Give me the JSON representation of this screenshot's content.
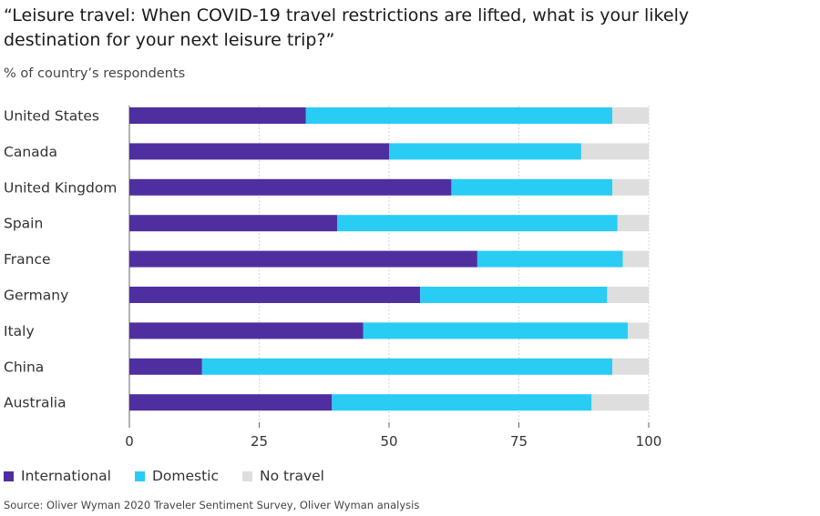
{
  "title": "“Leisure travel: When COVID-19 travel restrictions are lifted, what is your likely destination for your next leisure trip?”",
  "subtitle": "% of country’s respondents",
  "source": "Source: Oliver Wyman 2020 Traveler Sentiment Survey, Oliver Wyman analysis",
  "chart_data": {
    "type": "bar",
    "orientation": "horizontal",
    "stacked": true,
    "categories": [
      "United States",
      "Canada",
      "United Kingdom",
      "Spain",
      "France",
      "Germany",
      "Italy",
      "China",
      "Australia"
    ],
    "series": [
      {
        "name": "International",
        "color": "#4f2fa0",
        "values": [
          34,
          50,
          62,
          40,
          67,
          56,
          45,
          14,
          39
        ]
      },
      {
        "name": "Domestic",
        "color": "#29ccf2",
        "values": [
          59,
          37,
          31,
          54,
          28,
          36,
          51,
          79,
          50
        ]
      },
      {
        "name": "No travel",
        "color": "#dedede",
        "values": [
          7,
          13,
          7,
          6,
          5,
          8,
          4,
          7,
          11
        ]
      }
    ],
    "xlim": [
      0,
      100
    ],
    "xticks": [
      0,
      25,
      50,
      75,
      100
    ],
    "grid": true,
    "legend_position": "bottom-left"
  }
}
